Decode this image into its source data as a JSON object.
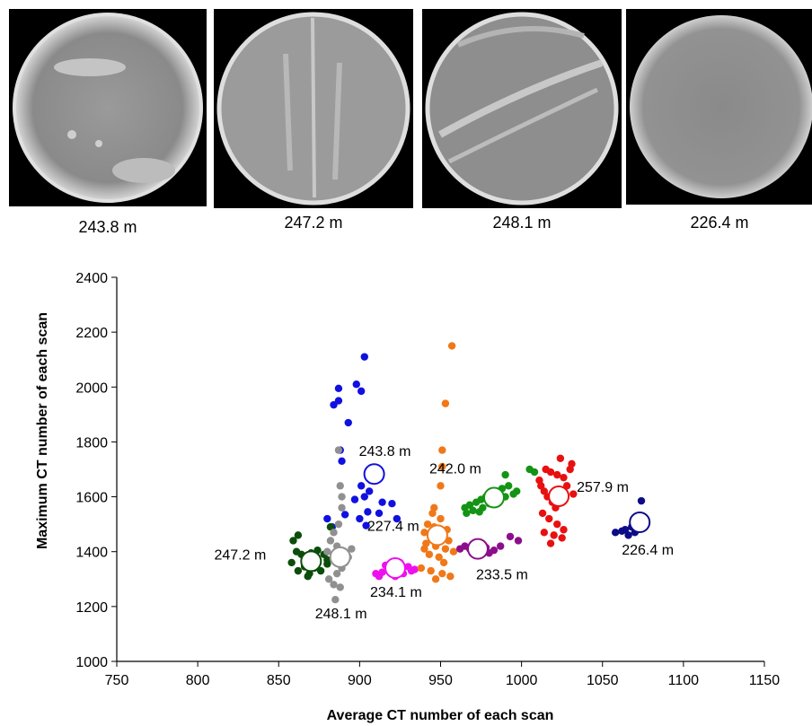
{
  "scans": [
    {
      "label": "243.8 m"
    },
    {
      "label": "247.2 m"
    },
    {
      "label": "248.1 m"
    },
    {
      "label": "226.4 m"
    }
  ],
  "chart_data": {
    "type": "scatter",
    "xlabel": "Average CT number of each scan",
    "ylabel": "Maximum CT number of each scan",
    "xlim": [
      750,
      1150
    ],
    "ylim": [
      1000,
      2400
    ],
    "xticks": [
      750,
      800,
      850,
      900,
      950,
      1000,
      1050,
      1100,
      1150
    ],
    "yticks": [
      1000,
      1200,
      1400,
      1600,
      1800,
      2000,
      2200,
      2400
    ],
    "grid": false,
    "series": [
      {
        "name": "243.8 m",
        "color": "#1010e0",
        "points": [
          [
            903,
            2110
          ],
          [
            898,
            2010
          ],
          [
            887,
            1995
          ],
          [
            901,
            1985
          ],
          [
            887,
            1950
          ],
          [
            884,
            1935
          ],
          [
            893,
            1870
          ],
          [
            888,
            1770
          ],
          [
            889,
            1730
          ],
          [
            908,
            1700
          ],
          [
            907,
            1660
          ],
          [
            901,
            1640
          ],
          [
            906,
            1620
          ],
          [
            903,
            1600
          ],
          [
            897,
            1590
          ],
          [
            914,
            1580
          ],
          [
            920,
            1575
          ],
          [
            905,
            1545
          ],
          [
            912,
            1540
          ],
          [
            891,
            1535
          ],
          [
            900,
            1520
          ],
          [
            923,
            1520
          ],
          [
            880,
            1520
          ],
          [
            904,
            1495
          ],
          [
            883,
            1490
          ]
        ],
        "centroid": [
          909,
          1683
        ],
        "annotation": "243.8 m"
      },
      {
        "name": "247.2 m",
        "color": "#0b4d0b",
        "points": [
          [
            861,
            1400
          ],
          [
            864,
            1390
          ],
          [
            866,
            1380
          ],
          [
            870,
            1370
          ],
          [
            873,
            1360
          ],
          [
            866,
            1345
          ],
          [
            862,
            1330
          ],
          [
            872,
            1340
          ],
          [
            878,
            1390
          ],
          [
            880,
            1355
          ],
          [
            876,
            1330
          ],
          [
            869,
            1320
          ],
          [
            859,
            1440
          ],
          [
            862,
            1460
          ],
          [
            882,
            1490
          ],
          [
            870,
            1395
          ],
          [
            874,
            1405
          ],
          [
            880,
            1370
          ],
          [
            858,
            1360
          ],
          [
            868,
            1310
          ]
        ],
        "centroid": [
          870,
          1365
        ],
        "annotation": "247.2 m"
      },
      {
        "name": "248.1 m",
        "color": "#909090",
        "points": [
          [
            887,
            1770
          ],
          [
            888,
            1640
          ],
          [
            889,
            1600
          ],
          [
            889,
            1560
          ],
          [
            887,
            1500
          ],
          [
            884,
            1470
          ],
          [
            882,
            1440
          ],
          [
            886,
            1420
          ],
          [
            890,
            1400
          ],
          [
            893,
            1380
          ],
          [
            889,
            1340
          ],
          [
            886,
            1320
          ],
          [
            881,
            1300
          ],
          [
            884,
            1280
          ],
          [
            888,
            1270
          ],
          [
            885,
            1225
          ],
          [
            891,
            1360
          ],
          [
            880,
            1400
          ],
          [
            895,
            1410
          ]
        ],
        "centroid": [
          888,
          1380
        ],
        "annotation": "248.1 m"
      },
      {
        "name": "234.1 m",
        "color": "#ee10ee",
        "points": [
          [
            910,
            1320
          ],
          [
            914,
            1325
          ],
          [
            920,
            1330
          ],
          [
            926,
            1340
          ],
          [
            930,
            1345
          ],
          [
            934,
            1335
          ],
          [
            916,
            1350
          ],
          [
            922,
            1310
          ],
          [
            927,
            1320
          ],
          [
            912,
            1310
          ],
          [
            932,
            1330
          ],
          [
            918,
            1340
          ],
          [
            925,
            1360
          ]
        ],
        "centroid": [
          922,
          1340
        ],
        "annotation": "234.1 m"
      },
      {
        "name": "227.4 m",
        "color": "#f07818",
        "points": [
          [
            957,
            2150
          ],
          [
            953,
            1940
          ],
          [
            951,
            1770
          ],
          [
            951,
            1710
          ],
          [
            950,
            1640
          ],
          [
            946,
            1560
          ],
          [
            945,
            1540
          ],
          [
            950,
            1520
          ],
          [
            942,
            1500
          ],
          [
            946,
            1490
          ],
          [
            954,
            1480
          ],
          [
            940,
            1470
          ],
          [
            944,
            1460
          ],
          [
            950,
            1450
          ],
          [
            955,
            1440
          ],
          [
            941,
            1430
          ],
          [
            947,
            1420
          ],
          [
            953,
            1410
          ],
          [
            958,
            1400
          ],
          [
            943,
            1390
          ],
          [
            949,
            1380
          ],
          [
            952,
            1360
          ],
          [
            938,
            1340
          ],
          [
            944,
            1330
          ],
          [
            951,
            1320
          ],
          [
            956,
            1310
          ],
          [
            947,
            1300
          ],
          [
            940,
            1410
          ]
        ],
        "centroid": [
          948,
          1460
        ],
        "annotation": "227.4 m"
      },
      {
        "name": "233.5 m",
        "color": "#8b0f8b",
        "points": [
          [
            965,
            1420
          ],
          [
            968,
            1410
          ],
          [
            972,
            1400
          ],
          [
            975,
            1430
          ],
          [
            978,
            1415
          ],
          [
            983,
            1405
          ],
          [
            987,
            1420
          ],
          [
            962,
            1410
          ],
          [
            980,
            1395
          ],
          [
            993,
            1455
          ],
          [
            998,
            1440
          ],
          [
            970,
            1425
          ]
        ],
        "centroid": [
          973,
          1410
        ],
        "annotation": "233.5 m"
      },
      {
        "name": "242.0 m",
        "color": "#149414",
        "points": [
          [
            965,
            1560
          ],
          [
            968,
            1570
          ],
          [
            972,
            1580
          ],
          [
            975,
            1590
          ],
          [
            978,
            1600
          ],
          [
            982,
            1610
          ],
          [
            985,
            1620
          ],
          [
            988,
            1630
          ],
          [
            992,
            1640
          ],
          [
            995,
            1610
          ],
          [
            970,
            1550
          ],
          [
            976,
            1560
          ],
          [
            980,
            1575
          ],
          [
            986,
            1590
          ],
          [
            990,
            1600
          ],
          [
            997,
            1620
          ],
          [
            1005,
            1700
          ],
          [
            1008,
            1690
          ],
          [
            990,
            1680
          ],
          [
            966,
            1540
          ],
          [
            974,
            1545
          ]
        ],
        "centroid": [
          983,
          1597
        ],
        "annotation": "242.0 m"
      },
      {
        "name": "257.9 m",
        "color": "#e81010",
        "points": [
          [
            1015,
            1700
          ],
          [
            1018,
            1690
          ],
          [
            1022,
            1680
          ],
          [
            1026,
            1670
          ],
          [
            1030,
            1700
          ],
          [
            1024,
            1740
          ],
          [
            1031,
            1720
          ],
          [
            1012,
            1640
          ],
          [
            1014,
            1620
          ],
          [
            1016,
            1600
          ],
          [
            1019,
            1580
          ],
          [
            1021,
            1560
          ],
          [
            1013,
            1540
          ],
          [
            1017,
            1520
          ],
          [
            1022,
            1500
          ],
          [
            1026,
            1480
          ],
          [
            1014,
            1470
          ],
          [
            1020,
            1460
          ],
          [
            1025,
            1450
          ],
          [
            1018,
            1430
          ],
          [
            1028,
            1640
          ],
          [
            1032,
            1610
          ],
          [
            1011,
            1660
          ]
        ],
        "centroid": [
          1023,
          1602
        ],
        "annotation": "257.9 m"
      },
      {
        "name": "226.4 m",
        "color": "#0c0c88",
        "points": [
          [
            1058,
            1470
          ],
          [
            1064,
            1480
          ],
          [
            1068,
            1490
          ],
          [
            1071,
            1500
          ],
          [
            1075,
            1510
          ],
          [
            1066,
            1460
          ],
          [
            1070,
            1470
          ],
          [
            1074,
            1585
          ],
          [
            1062,
            1475
          ]
        ],
        "centroid": [
          1073,
          1507
        ],
        "annotation": "226.4 m"
      }
    ]
  }
}
